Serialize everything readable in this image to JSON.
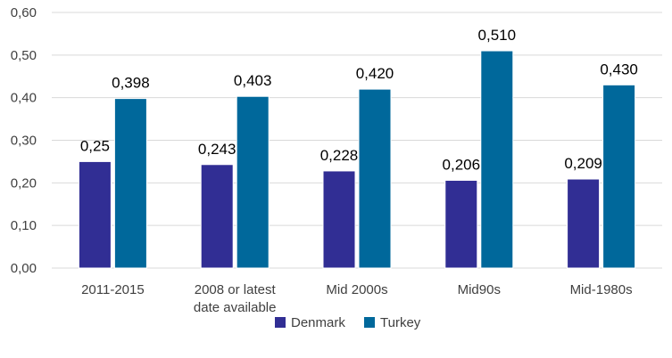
{
  "chart_data": {
    "type": "bar",
    "title": "",
    "xlabel": "",
    "ylabel": "",
    "ylim": [
      0,
      0.6
    ],
    "yticks": [
      0,
      0.1,
      0.2,
      0.3,
      0.4,
      0.5,
      0.6
    ],
    "ytick_labels": [
      "0,00",
      "0,10",
      "0,20",
      "0,30",
      "0,40",
      "0,50",
      "0,60"
    ],
    "grid": true,
    "legend_position": "bottom",
    "categories": [
      [
        "2011-2015"
      ],
      [
        "2008 or latest",
        "date available"
      ],
      [
        "Mid 2000s"
      ],
      [
        "Mid90s"
      ],
      [
        "Mid-1980s"
      ]
    ],
    "series": [
      {
        "name": "Denmark",
        "color": "#312e94",
        "values": [
          0.25,
          0.243,
          0.228,
          0.206,
          0.209
        ],
        "labels": [
          "0,25",
          "0,243",
          "0,228",
          "0,206",
          "0,209"
        ]
      },
      {
        "name": "Turkey",
        "color": "#00689b",
        "values": [
          0.398,
          0.403,
          0.42,
          0.51,
          0.43
        ],
        "labels": [
          "0,398",
          "0,403",
          "0,420",
          "0,510",
          "0,430"
        ]
      }
    ]
  }
}
